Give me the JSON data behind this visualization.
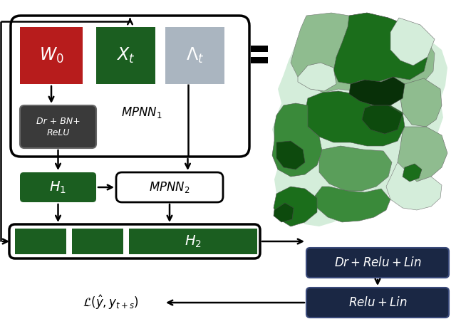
{
  "fig_width": 6.4,
  "fig_height": 4.48,
  "dpi": 100,
  "bg_color": "#ffffff",
  "colors": {
    "red_box": "#b71c1c",
    "dark_green_box": "#1b5e20",
    "light_gray_box": "#aab5c0",
    "dark_gray_box": "#3a3a3a",
    "navy_box": "#1a2744",
    "black": "#000000",
    "white": "#ffffff"
  },
  "map_colors": {
    "very_light": "#d4edda",
    "light": "#8fbc8f",
    "medium_light": "#5a9e5a",
    "medium": "#3a8a3a",
    "dark": "#1b6e1b",
    "very_dark": "#0d4a0d",
    "darkest": "#083008"
  }
}
